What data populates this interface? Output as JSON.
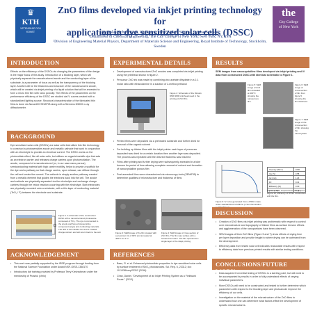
{
  "header": {
    "title_line1": "ZnO films developed via inkjet printing technology for",
    "title_line2": "application in dye sensitized solar cells (DSSC)",
    "authors": "Nicholas Schulman¹², Wolfgang Voit², Valter Ström², Lyuba Belova²",
    "affil1": "¹Department of Chemical Engineering, The City College of New York, New York, NY,USA",
    "affil2": "²Division of Engineering Material Physics, Department of Materials Science and Engineering, Royal Institute of Technology, Stockholm, Sweden",
    "kth_text": "KTH",
    "kth_sub": "VETENSKAP OCH KONST",
    "ccny_the": "the",
    "ccny_line1": "City College",
    "ccny_line2": "of New York"
  },
  "introduction": {
    "heading": "INTRODUCTION",
    "body": "Effects on the efficiency of the DSSCs via changing the parameters of the design is the major focus of this study. Introduction of a blocking layer, which will physically separate the nanostructured anode and the conducting layer of the substrate, is a parameter of focus as well as the transparency of the blocking layer. Another will be the thickness and structure of the nanostructured anode, which will be created via inkjet printing of a liquid solution that will be annealed to form a micro thin film with nano porosity. The effects of the parameters on the performance efficiency of the DSSC are studied via IV curves created with a standardized lighting source. Structural characterization of the fabricated thin films is done via Nova-600 SEM/FIB along with a Siemens D5000 x-ray diffractometer."
  },
  "background": {
    "heading": "BACKGROUND",
    "body": "Dye sensitized solar cells (DSSCs) are solar cells that utilize thin film technology to construct a photosensitive anode and metallic cathode that work in conjunction with an electrolyte to provide an electrical current. The DSSC works on the photovoltaic effect, like all solar cells, but utilizes an organic/metallic dye that acts as an electron carrier and releases charge carriers upon photoexcitation. The anode, composed of a nanostructured (or, in our case nano-porous) semiconducting material with high carrier mobility, helps to provide a scaffold for the dye and a pathway so that charge carries, upon release, can diffuse through the cell and create the current. The cathode is simply another pathway created from a metallic element that guides the electrons back into the cell. The anode and cathode are physically separated via the electrolyte and exchange charge carriers through the redox reaction occurring with the electrolyte. Both electrodes are physically mounted onto a substrate, with a thin layer of conducting material (TeO₂ / F) between the electrode and substrate.",
    "fig_caption": "Figure 1. A schematic of the constructed DSSC with a nanostructured photoanode composed of TiO₂. The dye is connected to the anode and have photosensitive components (dye) and conducting materials. The drift to the outside can and is created charge carriers and will return back to the cell."
  },
  "acknowledgement": {
    "heading": "ACKNOWLEDGEMENT",
    "items": [
      "This work was partially supported by the IREE program through funding from the National Science Foundation under Award NSF-OISE-1358170",
      "Introductory lab training provided by Professor Terry Kretzschmar under the mentorship of Prashul (chris)"
    ]
  },
  "experimental": {
    "heading": "EXPERIMENTAL DETAILS",
    "bullets_top": [
      "Development of nanostructured ZnO anodes was completed via inkjet printing using the printhead shown in figure 2.",
      "Precursor ZnO ink was made by combining zinc acetate dihydrate in a 1:1 molar ratio with ethanolamine in a solution of 2-methoxyethanol"
    ],
    "fig2_caption": "Figure 2: Schematic of the Dimatix DMP-2800 printhead used in the printing of ZnO film",
    "bullets_mid": [
      "Printed films were deposited via a preheated substrate and further dried for removal of the organic solvent",
      "For building up thicker films with the inkjet printer each layer of precursor deposited was dried for a certain duration then another layer was deposited. The process was repeated until the desired thickness was reached",
      "Films after printing and further drying were subsequently annealed in a tube furnace for period of time allowing complete removal of solvent and formation of nanocrystalline porous film",
      "Post-annealed films were characterized via microscopy tools (SEM/FIB) to determine qualities of microstructure and thickness of films"
    ],
    "fig3_caption": "Figure 3: SEM image of the film created with a precursor ink of 90% and annealed at 400°C for 1 hr",
    "fig4_caption": "Figure 4: SEM image of cross-section of ZnO film. The film was surface with a focused ion beam. The film represents a single layer of the inkjet printing"
  },
  "references": {
    "heading": "REFERENCES",
    "items": [
      "Basu, R. et al. Enhanced photovoltaic properties in dye sensitized solar cells by surface treatment of SnO₂ photoanodes. Sci. Rep. 6, 23312; doi: 10.1038/srep23312 (2016).",
      "Chan, Daniel. \"Development of an Inkjet Printing System as a Fieldwork Route.\" (2013)."
    ]
  },
  "results": {
    "heading": "RESULTS",
    "intro": "SEM images from nanocrystalline films developed via inkjet printing and IV data from constructed DSSC with identical schematic to Figure 1.",
    "captions": [
      "Figure 5: SEM image of ZnO film annealed at 400°C showing the nanoporous film.",
      "Figure 6: SEM image of cross-section of film from figure 5 showing the film thickness.",
      "Figure 7: SEM image of the cross-section of film showing the nanocrystals.",
      "Figure 8: Data acquired from the graph in Figure 10; efficiency of DSSC constructed with the film.",
      "Figure 9: IV curve generated from a DSSC made under standardized conditions (1 Sun illumination = 100mW/cm²)"
    ],
    "table_rows": [
      [
        "Intensity (W/m²)",
        "1000"
      ],
      [
        "Voc (V)",
        "0.58"
      ],
      [
        "Isc (mA)",
        "1.24"
      ],
      [
        "FF",
        "0.41"
      ],
      [
        "Efficiency (%)",
        "0.30"
      ],
      [
        "Area (cm²)",
        "0.25"
      ]
    ]
  },
  "discussion": {
    "heading": "DISCUSSION",
    "items": [
      "Creation of ZnO films via inkjet printing was problematic with respect to control over microstructure and topography of thicker films as surface tension effects and agglomeration of the nanoparticles have been observed.",
      "SEM images of thick ZnO films (Figure 5 and 7) show effects of drying time per layer deposition and provide insight to where drying can be optimized from the development.",
      "Efficiency data from tested solar cell indicates reasonable results with respect to efficiency data from previous printed results with similar testing conditions."
    ]
  },
  "conclusions": {
    "heading": "CONCLUSIONS/FUTURE WORK",
    "items": [
      "Data acquired from initial testing of DSSCs is a starting point, but will need to be accompanied by results in order to fully understand effects of varying individual parameters.",
      "More DSSCs will need to be constructed and tested to further determine which parameters with respect to the blocking layer and photoanode improve the efficiency of our cells.",
      "Investigation on the material of the microstructure of the ZnO films to understand how one can determine what factors effect the development of specific microstructures."
    ]
  }
}
